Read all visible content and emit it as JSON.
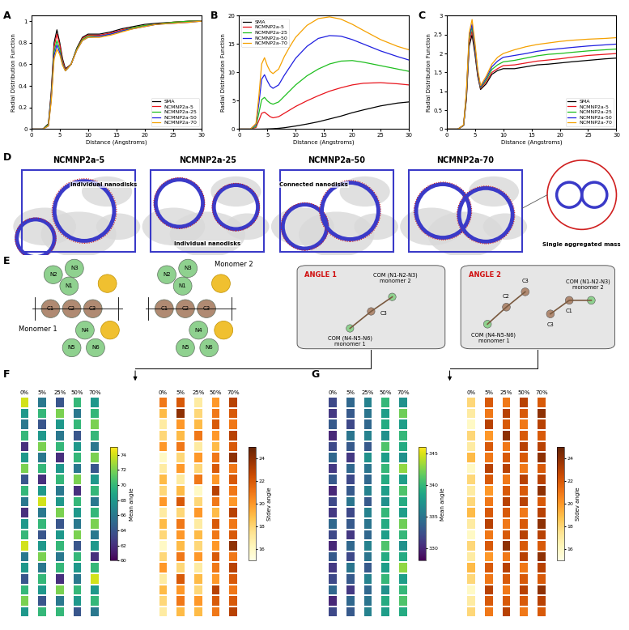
{
  "panel_labels": [
    "A",
    "B",
    "C",
    "D",
    "E",
    "F",
    "G"
  ],
  "chart_data": [
    {
      "type": "line",
      "xlabel": "Distance (Angstroms)",
      "ylabel": "Radial Distribution Function",
      "x": [
        0,
        2,
        3,
        3.5,
        4,
        4.5,
        5,
        5.5,
        6,
        7,
        8,
        9,
        10,
        12,
        14,
        16,
        18,
        20,
        22,
        25,
        28,
        30
      ],
      "xlim": [
        0,
        30
      ],
      "xticks": [
        0,
        5,
        10,
        15,
        20,
        25,
        30
      ],
      "ylim": [
        0,
        1.05
      ],
      "yticks": [
        0,
        0.2,
        0.4,
        0.6,
        0.8,
        1
      ],
      "legend": "lower right",
      "series": [
        {
          "name": "SMA",
          "color": "#000000",
          "values": [
            0,
            0,
            0.05,
            0.35,
            0.8,
            0.92,
            0.8,
            0.65,
            0.56,
            0.6,
            0.75,
            0.85,
            0.88,
            0.88,
            0.9,
            0.93,
            0.95,
            0.97,
            0.98,
            0.99,
            1.0,
            1.0
          ]
        },
        {
          "name": "NCMNP2a-5",
          "color": "#e8141c",
          "values": [
            0,
            0,
            0.04,
            0.32,
            0.76,
            0.88,
            0.78,
            0.63,
            0.55,
            0.6,
            0.74,
            0.84,
            0.87,
            0.87,
            0.89,
            0.92,
            0.94,
            0.96,
            0.97,
            0.99,
            1.0,
            1.0
          ]
        },
        {
          "name": "NCMNP2a-25",
          "color": "#1fbf1f",
          "values": [
            0,
            0,
            0.04,
            0.3,
            0.72,
            0.82,
            0.74,
            0.61,
            0.54,
            0.6,
            0.74,
            0.83,
            0.86,
            0.86,
            0.88,
            0.91,
            0.94,
            0.96,
            0.97,
            0.99,
            1.0,
            1.0
          ]
        },
        {
          "name": "NCMNP2a-50",
          "color": "#1f1fe0",
          "values": [
            0,
            0,
            0.03,
            0.28,
            0.68,
            0.78,
            0.71,
            0.6,
            0.54,
            0.6,
            0.73,
            0.82,
            0.85,
            0.86,
            0.88,
            0.91,
            0.93,
            0.95,
            0.97,
            0.98,
            0.99,
            1.0
          ]
        },
        {
          "name": "NCMNP2a-70",
          "color": "#f5a100",
          "values": [
            0,
            0,
            0.03,
            0.26,
            0.65,
            0.74,
            0.69,
            0.59,
            0.54,
            0.6,
            0.73,
            0.82,
            0.85,
            0.85,
            0.87,
            0.9,
            0.93,
            0.95,
            0.97,
            0.98,
            0.99,
            1.0
          ]
        }
      ]
    },
    {
      "type": "line",
      "xlabel": "Distance (Angstroms)",
      "ylabel": "Radial Distribution Function",
      "x": [
        0,
        2,
        3,
        3.5,
        4,
        4.5,
        5,
        5.5,
        6,
        7,
        8,
        9,
        10,
        12,
        14,
        16,
        18,
        20,
        22,
        25,
        28,
        30
      ],
      "xlim": [
        0,
        30
      ],
      "xticks": [
        0,
        5,
        10,
        15,
        20,
        25,
        30
      ],
      "ylim": [
        0,
        20
      ],
      "yticks": [
        0,
        5,
        10,
        15,
        20
      ],
      "legend": "upper left",
      "series": [
        {
          "name": "SMA",
          "color": "#000000",
          "values": [
            0,
            0,
            0,
            0,
            0.01,
            0.02,
            0.04,
            0.06,
            0.08,
            0.15,
            0.25,
            0.4,
            0.55,
            0.9,
            1.3,
            1.8,
            2.3,
            2.9,
            3.4,
            4.1,
            4.6,
            4.8
          ]
        },
        {
          "name": "NCMNP2a-5",
          "color": "#e8141c",
          "values": [
            0,
            0,
            0.3,
            1.5,
            2.8,
            3.0,
            2.6,
            2.2,
            2.0,
            2.2,
            2.8,
            3.4,
            4.0,
            5.0,
            5.9,
            6.7,
            7.3,
            7.8,
            8.1,
            8.2,
            8.0,
            7.8
          ]
        },
        {
          "name": "NCMNP2a-25",
          "color": "#1fbf1f",
          "values": [
            0,
            0,
            0.5,
            2.8,
            5.2,
            5.6,
            5.0,
            4.6,
            4.4,
            4.8,
            5.8,
            6.8,
            7.8,
            9.4,
            10.6,
            11.5,
            12.0,
            12.1,
            11.8,
            11.2,
            10.6,
            10.2
          ]
        },
        {
          "name": "NCMNP2a-50",
          "color": "#1f1fe0",
          "values": [
            0,
            0,
            0.8,
            4.5,
            8.8,
            9.6,
            8.5,
            7.6,
            7.2,
            7.8,
            9.5,
            11.0,
            12.5,
            14.6,
            16.0,
            16.5,
            16.4,
            15.8,
            15.0,
            13.8,
            12.8,
            12.2
          ]
        },
        {
          "name": "NCMNP2a-70",
          "color": "#f5a100",
          "values": [
            0,
            0,
            1.0,
            5.8,
            11.5,
            12.6,
            11.2,
            10.2,
            9.8,
            10.6,
            12.8,
            14.6,
            16.2,
            18.3,
            19.5,
            19.8,
            19.4,
            18.5,
            17.4,
            15.8,
            14.6,
            14.0
          ]
        }
      ]
    },
    {
      "type": "line",
      "xlabel": "Distance (Angstroms)",
      "ylabel": "Radial Distribution Function",
      "x": [
        0,
        2,
        3,
        3.5,
        4,
        4.5,
        5,
        5.5,
        6,
        7,
        8,
        9,
        10,
        12,
        14,
        16,
        18,
        20,
        22,
        25,
        28,
        30
      ],
      "xlim": [
        0,
        30
      ],
      "xticks": [
        0,
        5,
        10,
        15,
        20,
        25,
        30
      ],
      "ylim": [
        0,
        3
      ],
      "yticks": [
        0,
        0.5,
        1,
        1.5,
        2,
        2.5,
        3
      ],
      "legend": "lower right",
      "series": [
        {
          "name": "SMA",
          "color": "#000000",
          "values": [
            0,
            0,
            0.1,
            0.8,
            2.2,
            2.5,
            2.0,
            1.4,
            1.05,
            1.2,
            1.45,
            1.55,
            1.6,
            1.6,
            1.65,
            1.7,
            1.72,
            1.75,
            1.78,
            1.82,
            1.86,
            1.88
          ]
        },
        {
          "name": "NCMNP2a-5",
          "color": "#e8141c",
          "values": [
            0,
            0,
            0.1,
            0.85,
            2.3,
            2.6,
            2.1,
            1.45,
            1.08,
            1.25,
            1.5,
            1.6,
            1.68,
            1.7,
            1.75,
            1.8,
            1.83,
            1.86,
            1.9,
            1.95,
            1.98,
            2.0
          ]
        },
        {
          "name": "NCMNP2a-25",
          "color": "#1fbf1f",
          "values": [
            0,
            0,
            0.1,
            0.9,
            2.4,
            2.7,
            2.15,
            1.5,
            1.1,
            1.3,
            1.58,
            1.7,
            1.78,
            1.82,
            1.88,
            1.94,
            1.98,
            2.0,
            2.03,
            2.07,
            2.1,
            2.12
          ]
        },
        {
          "name": "NCMNP2a-50",
          "color": "#1f1fe0",
          "values": [
            0,
            0,
            0.1,
            0.95,
            2.45,
            2.78,
            2.2,
            1.52,
            1.12,
            1.35,
            1.65,
            1.8,
            1.9,
            1.95,
            2.0,
            2.06,
            2.1,
            2.13,
            2.16,
            2.2,
            2.23,
            2.25
          ]
        },
        {
          "name": "NCMNP2a-70",
          "color": "#f5a100",
          "values": [
            0,
            0,
            0.11,
            1.0,
            2.55,
            2.9,
            2.3,
            1.58,
            1.15,
            1.4,
            1.72,
            1.9,
            2.0,
            2.1,
            2.18,
            2.24,
            2.28,
            2.32,
            2.35,
            2.38,
            2.4,
            2.42
          ]
        }
      ]
    },
    {
      "type": "heatmap",
      "tick_labels": "x",
      "categories": [
        "0%",
        "5%",
        "25%",
        "50%",
        "70%"
      ],
      "colorbar": {
        "label": "Mean angle",
        "range": [
          60,
          75
        ],
        "ticks": [
          60,
          62,
          64,
          66,
          68,
          70,
          72,
          74
        ]
      },
      "cells": [
        [
          74,
          66,
          64,
          70,
          68
        ],
        [
          68,
          70,
          72,
          66,
          70
        ],
        [
          66,
          64,
          68,
          70,
          72
        ],
        [
          70,
          68,
          66,
          64,
          70
        ],
        [
          62,
          72,
          70,
          68,
          66
        ],
        [
          68,
          66,
          62,
          70,
          72
        ],
        [
          72,
          70,
          68,
          66,
          64
        ],
        [
          64,
          62,
          70,
          72,
          68
        ],
        [
          70,
          68,
          66,
          62,
          70
        ],
        [
          66,
          74,
          68,
          70,
          66
        ],
        [
          62,
          66,
          72,
          68,
          70
        ],
        [
          68,
          70,
          64,
          66,
          72
        ],
        [
          70,
          64,
          68,
          72,
          66
        ],
        [
          74,
          68,
          70,
          64,
          68
        ],
        [
          66,
          72,
          66,
          70,
          62
        ],
        [
          68,
          66,
          70,
          68,
          70
        ],
        [
          64,
          70,
          62,
          66,
          74
        ],
        [
          70,
          68,
          72,
          70,
          68
        ],
        [
          72,
          64,
          66,
          68,
          70
        ],
        [
          68,
          70,
          70,
          64,
          66
        ]
      ]
    },
    {
      "type": "heatmap",
      "tick_labels": "x",
      "categories": [
        "0%",
        "5%",
        "25%",
        "50%",
        "70%"
      ],
      "colorbar": {
        "label": "Stdev angle",
        "range": [
          15,
          25
        ],
        "ticks": [
          16,
          18,
          20,
          22,
          24
        ]
      },
      "cells": [
        [
          21,
          22,
          17,
          20,
          23
        ],
        [
          19,
          24,
          18,
          21,
          22
        ],
        [
          17,
          20,
          19,
          22,
          21
        ],
        [
          18,
          19,
          21,
          20,
          23
        ],
        [
          20,
          21,
          17,
          19,
          22
        ],
        [
          16,
          18,
          20,
          21,
          24
        ],
        [
          17,
          20,
          18,
          22,
          21
        ],
        [
          19,
          17,
          21,
          20,
          22
        ],
        [
          18,
          19,
          16,
          23,
          21
        ],
        [
          20,
          22,
          18,
          21,
          20
        ],
        [
          17,
          18,
          20,
          19,
          23
        ],
        [
          19,
          21,
          17,
          22,
          21
        ],
        [
          18,
          20,
          19,
          21,
          22
        ],
        [
          16,
          19,
          18,
          20,
          24
        ],
        [
          18,
          21,
          20,
          22,
          21
        ],
        [
          20,
          18,
          17,
          21,
          23
        ],
        [
          17,
          22,
          19,
          20,
          22
        ],
        [
          19,
          20,
          18,
          23,
          21
        ],
        [
          18,
          21,
          20,
          22,
          22
        ],
        [
          17,
          19,
          19,
          21,
          23
        ]
      ]
    },
    {
      "type": "heatmap",
      "tick_labels": "x",
      "categories": [
        "0%",
        "5%",
        "25%",
        "50%",
        "70%"
      ],
      "colorbar": {
        "label": "Mean angle",
        "range": [
          328,
          346
        ],
        "ticks": [
          330,
          335,
          340,
          345
        ]
      },
      "cells": [
        [
          332,
          334,
          336,
          340,
          337
        ],
        [
          331,
          333,
          335,
          338,
          342
        ],
        [
          333,
          332,
          334,
          339,
          338
        ],
        [
          330,
          335,
          336,
          337,
          340
        ],
        [
          332,
          333,
          333,
          341,
          339
        ],
        [
          334,
          331,
          337,
          338,
          337
        ],
        [
          331,
          334,
          335,
          340,
          343
        ],
        [
          333,
          332,
          334,
          339,
          338
        ],
        [
          330,
          333,
          336,
          338,
          341
        ],
        [
          332,
          335,
          333,
          337,
          339
        ],
        [
          331,
          332,
          336,
          340,
          338
        ],
        [
          334,
          333,
          335,
          339,
          342
        ],
        [
          332,
          331,
          334,
          338,
          340
        ],
        [
          330,
          334,
          336,
          341,
          337
        ],
        [
          333,
          332,
          335,
          339,
          339
        ],
        [
          331,
          335,
          333,
          338,
          343
        ],
        [
          332,
          333,
          336,
          340,
          338
        ],
        [
          334,
          331,
          334,
          337,
          340
        ],
        [
          330,
          334,
          335,
          339,
          341
        ],
        [
          332,
          333,
          336,
          338,
          339
        ]
      ]
    },
    {
      "type": "heatmap",
      "tick_labels": "x",
      "categories": [
        "0%",
        "5%",
        "25%",
        "50%",
        "70%"
      ],
      "colorbar": {
        "label": "Stdev angle",
        "range": [
          15,
          25
        ],
        "ticks": [
          16,
          18,
          20,
          22,
          24
        ]
      },
      "cells": [
        [
          18,
          22,
          21,
          23,
          22
        ],
        [
          17,
          21,
          23,
          22,
          24
        ],
        [
          16,
          23,
          22,
          21,
          23
        ],
        [
          18,
          20,
          24,
          22,
          22
        ],
        [
          17,
          22,
          21,
          23,
          23
        ],
        [
          19,
          21,
          22,
          22,
          24
        ],
        [
          16,
          23,
          23,
          21,
          22
        ],
        [
          18,
          22,
          21,
          23,
          23
        ],
        [
          17,
          20,
          22,
          22,
          24
        ],
        [
          18,
          21,
          23,
          23,
          22
        ],
        [
          19,
          22,
          22,
          21,
          23
        ],
        [
          17,
          23,
          21,
          22,
          24
        ],
        [
          16,
          21,
          22,
          23,
          23
        ],
        [
          18,
          22,
          24,
          22,
          22
        ],
        [
          17,
          20,
          21,
          23,
          24
        ],
        [
          19,
          22,
          23,
          21,
          23
        ],
        [
          18,
          21,
          22,
          22,
          22
        ],
        [
          16,
          23,
          21,
          23,
          24
        ],
        [
          17,
          22,
          22,
          22,
          23
        ],
        [
          18,
          21,
          23,
          21,
          22
        ]
      ]
    }
  ],
  "diagram": {
    "D": {
      "panels": [
        {
          "title": "NCMNP2a-5",
          "labels": [
            "Individual nanodisks"
          ]
        },
        {
          "title": "NCMNP2a-25",
          "labels": [
            "Individual nanodisks"
          ]
        },
        {
          "title": "NCMNP2a-50",
          "labels": [
            "Connected nanodisks"
          ]
        },
        {
          "title": "NCMNP2a-70"
        }
      ],
      "zoom_label": "Single aggregated mass"
    },
    "E": {
      "monomers": [
        "Monomer 1",
        "Monomer 2"
      ],
      "beads": [
        "N1",
        "N2",
        "N3",
        "N4",
        "N5",
        "N6",
        "C1",
        "C2",
        "C3"
      ],
      "angle1": {
        "title": "ANGLE 1",
        "top": "COM (N1-N2-N3)\nmonomer 2",
        "center": "C3",
        "bottom": "COM (N4-N5-N6)\nmonomer 1"
      },
      "angle2": {
        "title": "ANGLE 2",
        "top": "COM (N1-N2-N3)\nmonomer 2",
        "bottom": "COM (N4-N5-N6)\nmonomer 1",
        "left_beads": [
          "C2",
          "C3"
        ],
        "right_beads": [
          "C3",
          "C1"
        ]
      }
    }
  }
}
